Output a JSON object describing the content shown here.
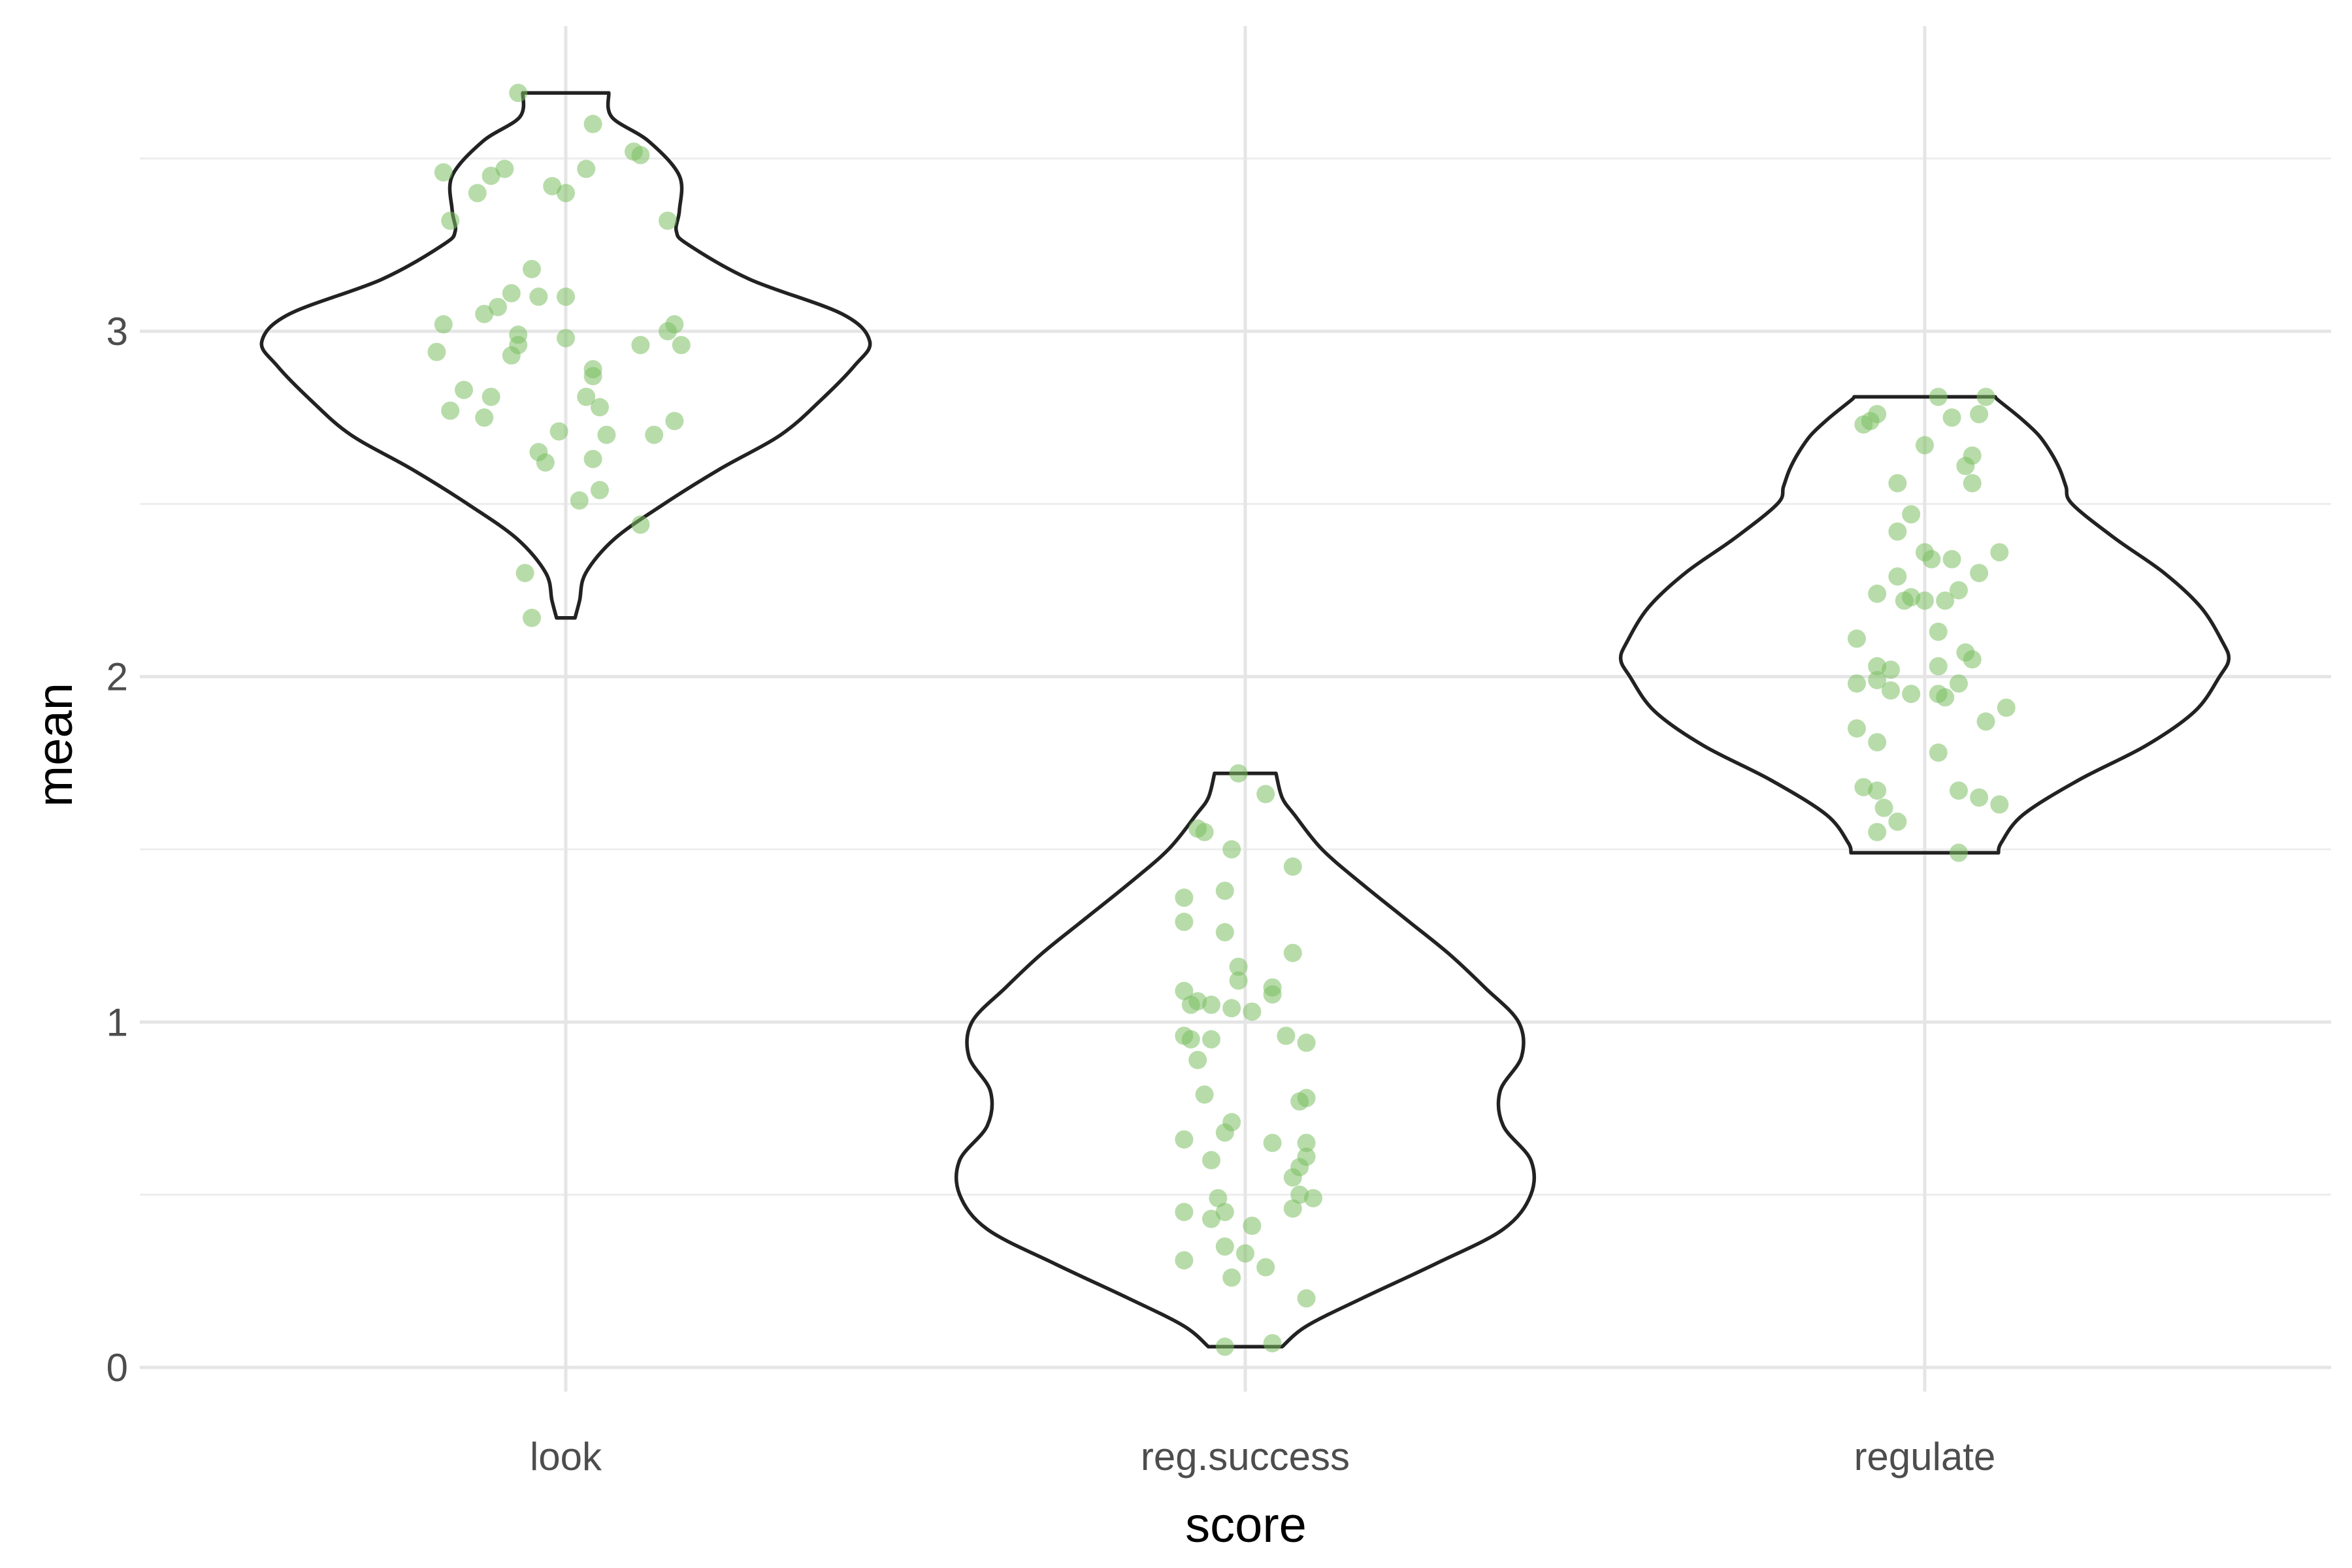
{
  "colors": {
    "background": "#ffffff",
    "grid_major": "#e5e5e5",
    "grid_minor": "#ededed",
    "violin_outline": "#222222",
    "points": "#7cbf62"
  },
  "chart_data": {
    "type": "violin",
    "xlabel": "score",
    "ylabel": "mean",
    "categories": [
      "look",
      "reg.success",
      "regulate"
    ],
    "ylim": [
      -0.07,
      3.78
    ],
    "yticks": [
      0,
      1,
      2,
      3
    ],
    "grid": true,
    "violins": [
      {
        "category": "look",
        "min": 2.17,
        "max": 3.69,
        "profile": [
          [
            2.17,
            0.03
          ],
          [
            2.22,
            0.045
          ],
          [
            2.3,
            0.065
          ],
          [
            2.4,
            0.16
          ],
          [
            2.5,
            0.32
          ],
          [
            2.6,
            0.5
          ],
          [
            2.7,
            0.7
          ],
          [
            2.8,
            0.83
          ],
          [
            2.9,
            0.94
          ],
          [
            2.97,
            0.99
          ],
          [
            3.05,
            0.9
          ],
          [
            3.15,
            0.6
          ],
          [
            3.25,
            0.4
          ],
          [
            3.29,
            0.36
          ],
          [
            3.35,
            0.37
          ],
          [
            3.45,
            0.37
          ],
          [
            3.55,
            0.27
          ],
          [
            3.62,
            0.15
          ],
          [
            3.69,
            0.14
          ]
        ],
        "points": [
          [
            -0.07,
            3.69
          ],
          [
            0.04,
            3.6
          ],
          [
            -0.09,
            3.47
          ],
          [
            -0.18,
            3.46
          ],
          [
            -0.11,
            3.45
          ],
          [
            0.1,
            3.52
          ],
          [
            0.11,
            3.51
          ],
          [
            0.03,
            3.47
          ],
          [
            -0.13,
            3.4
          ],
          [
            -0.02,
            3.42
          ],
          [
            0.0,
            3.4
          ],
          [
            0.15,
            3.32
          ],
          [
            -0.17,
            3.32
          ],
          [
            -0.05,
            3.18
          ],
          [
            -0.08,
            3.11
          ],
          [
            -0.04,
            3.1
          ],
          [
            0.0,
            3.1
          ],
          [
            -0.1,
            3.07
          ],
          [
            -0.12,
            3.05
          ],
          [
            -0.18,
            3.02
          ],
          [
            -0.07,
            2.99
          ],
          [
            -0.07,
            2.96
          ],
          [
            -0.08,
            2.93
          ],
          [
            -0.19,
            2.94
          ],
          [
            0.0,
            2.98
          ],
          [
            0.16,
            3.02
          ],
          [
            0.15,
            3.0
          ],
          [
            0.11,
            2.96
          ],
          [
            0.17,
            2.96
          ],
          [
            0.04,
            2.89
          ],
          [
            0.04,
            2.87
          ],
          [
            -0.15,
            2.83
          ],
          [
            -0.11,
            2.81
          ],
          [
            -0.17,
            2.77
          ],
          [
            -0.12,
            2.75
          ],
          [
            0.03,
            2.81
          ],
          [
            0.05,
            2.78
          ],
          [
            0.16,
            2.74
          ],
          [
            0.13,
            2.7
          ],
          [
            0.06,
            2.7
          ],
          [
            -0.01,
            2.71
          ],
          [
            -0.04,
            2.65
          ],
          [
            -0.03,
            2.62
          ],
          [
            0.04,
            2.63
          ],
          [
            0.05,
            2.54
          ],
          [
            0.02,
            2.51
          ],
          [
            0.11,
            2.44
          ],
          [
            -0.06,
            2.3
          ],
          [
            -0.05,
            2.17
          ]
        ]
      },
      {
        "category": "reg.success",
        "min": 0.06,
        "max": 1.72,
        "profile": [
          [
            0.06,
            0.12
          ],
          [
            0.12,
            0.2
          ],
          [
            0.2,
            0.38
          ],
          [
            0.3,
            0.62
          ],
          [
            0.4,
            0.84
          ],
          [
            0.5,
            0.93
          ],
          [
            0.6,
            0.93
          ],
          [
            0.7,
            0.84
          ],
          [
            0.8,
            0.83
          ],
          [
            0.9,
            0.9
          ],
          [
            1.0,
            0.89
          ],
          [
            1.1,
            0.78
          ],
          [
            1.2,
            0.66
          ],
          [
            1.3,
            0.52
          ],
          [
            1.4,
            0.38
          ],
          [
            1.5,
            0.25
          ],
          [
            1.6,
            0.16
          ],
          [
            1.65,
            0.12
          ],
          [
            1.72,
            0.1
          ]
        ],
        "points": [
          [
            -0.03,
            0.06
          ],
          [
            0.04,
            0.07
          ],
          [
            -0.09,
            0.31
          ],
          [
            -0.02,
            0.26
          ],
          [
            0.03,
            0.29
          ],
          [
            0.09,
            0.2
          ],
          [
            0.0,
            0.33
          ],
          [
            -0.03,
            0.35
          ],
          [
            0.01,
            0.41
          ],
          [
            -0.05,
            0.43
          ],
          [
            -0.03,
            0.45
          ],
          [
            -0.09,
            0.45
          ],
          [
            -0.04,
            0.49
          ],
          [
            0.07,
            0.46
          ],
          [
            0.08,
            0.5
          ],
          [
            0.1,
            0.49
          ],
          [
            0.07,
            0.55
          ],
          [
            0.08,
            0.58
          ],
          [
            0.09,
            0.61
          ],
          [
            0.09,
            0.65
          ],
          [
            0.04,
            0.65
          ],
          [
            -0.05,
            0.6
          ],
          [
            -0.09,
            0.66
          ],
          [
            -0.03,
            0.68
          ],
          [
            -0.02,
            0.71
          ],
          [
            0.08,
            0.77
          ],
          [
            0.09,
            0.78
          ],
          [
            -0.06,
            0.79
          ],
          [
            -0.07,
            0.89
          ],
          [
            -0.08,
            0.95
          ],
          [
            -0.05,
            0.95
          ],
          [
            -0.09,
            0.96
          ],
          [
            0.06,
            0.96
          ],
          [
            0.09,
            0.94
          ],
          [
            -0.08,
            1.05
          ],
          [
            -0.07,
            1.06
          ],
          [
            -0.05,
            1.05
          ],
          [
            -0.02,
            1.04
          ],
          [
            0.01,
            1.03
          ],
          [
            -0.09,
            1.09
          ],
          [
            0.04,
            1.1
          ],
          [
            0.04,
            1.08
          ],
          [
            -0.01,
            1.12
          ],
          [
            -0.01,
            1.16
          ],
          [
            0.07,
            1.2
          ],
          [
            -0.03,
            1.26
          ],
          [
            -0.09,
            1.29
          ],
          [
            -0.09,
            1.36
          ],
          [
            -0.03,
            1.38
          ],
          [
            0.07,
            1.45
          ],
          [
            -0.02,
            1.5
          ],
          [
            -0.07,
            1.56
          ],
          [
            -0.06,
            1.55
          ],
          [
            0.03,
            1.66
          ],
          [
            -0.01,
            1.72
          ]
        ]
      },
      {
        "category": "regulate",
        "min": 1.49,
        "max": 2.81,
        "profile": [
          [
            1.49,
            0.24
          ],
          [
            1.52,
            0.25
          ],
          [
            1.6,
            0.32
          ],
          [
            1.7,
            0.5
          ],
          [
            1.8,
            0.72
          ],
          [
            1.9,
            0.88
          ],
          [
            2.0,
            0.96
          ],
          [
            2.05,
            0.99
          ],
          [
            2.1,
            0.97
          ],
          [
            2.2,
            0.9
          ],
          [
            2.3,
            0.78
          ],
          [
            2.4,
            0.62
          ],
          [
            2.5,
            0.48
          ],
          [
            2.55,
            0.46
          ],
          [
            2.6,
            0.44
          ],
          [
            2.65,
            0.41
          ],
          [
            2.7,
            0.37
          ],
          [
            2.75,
            0.31
          ],
          [
            2.8,
            0.24
          ],
          [
            2.81,
            0.23
          ]
        ],
        "points": [
          [
            0.05,
            1.49
          ],
          [
            -0.07,
            1.55
          ],
          [
            -0.06,
            1.62
          ],
          [
            -0.09,
            1.68
          ],
          [
            -0.07,
            1.67
          ],
          [
            -0.04,
            1.58
          ],
          [
            0.05,
            1.67
          ],
          [
            0.02,
            1.78
          ],
          [
            0.08,
            1.65
          ],
          [
            0.11,
            1.63
          ],
          [
            -0.1,
            1.85
          ],
          [
            -0.07,
            1.81
          ],
          [
            0.09,
            1.87
          ],
          [
            0.12,
            1.91
          ],
          [
            -0.1,
            1.98
          ],
          [
            -0.07,
            1.99
          ],
          [
            -0.05,
            1.96
          ],
          [
            -0.02,
            1.95
          ],
          [
            0.02,
            1.95
          ],
          [
            0.03,
            1.94
          ],
          [
            0.05,
            1.98
          ],
          [
            -0.07,
            2.03
          ],
          [
            -0.05,
            2.02
          ],
          [
            0.02,
            2.03
          ],
          [
            0.06,
            2.07
          ],
          [
            0.07,
            2.05
          ],
          [
            -0.1,
            2.11
          ],
          [
            0.02,
            2.13
          ],
          [
            -0.07,
            2.24
          ],
          [
            -0.02,
            2.23
          ],
          [
            -0.03,
            2.22
          ],
          [
            0.0,
            2.22
          ],
          [
            0.03,
            2.22
          ],
          [
            0.05,
            2.25
          ],
          [
            0.08,
            2.3
          ],
          [
            -0.04,
            2.29
          ],
          [
            -0.04,
            2.42
          ],
          [
            0.01,
            2.34
          ],
          [
            0.0,
            2.36
          ],
          [
            0.04,
            2.34
          ],
          [
            0.11,
            2.36
          ],
          [
            -0.02,
            2.47
          ],
          [
            -0.04,
            2.56
          ],
          [
            0.07,
            2.56
          ],
          [
            0.06,
            2.61
          ],
          [
            0.07,
            2.64
          ],
          [
            0.0,
            2.67
          ],
          [
            -0.09,
            2.73
          ],
          [
            -0.08,
            2.74
          ],
          [
            -0.07,
            2.76
          ],
          [
            0.04,
            2.75
          ],
          [
            0.08,
            2.76
          ],
          [
            0.02,
            2.81
          ],
          [
            0.09,
            2.81
          ]
        ]
      }
    ]
  }
}
